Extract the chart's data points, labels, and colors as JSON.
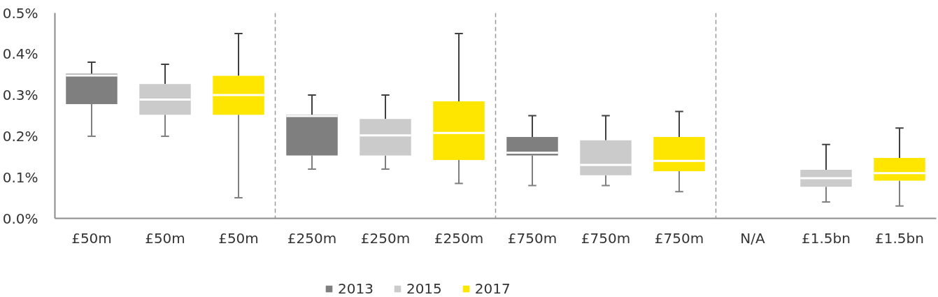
{
  "chart_data": {
    "type": "box",
    "categories": [
      "£50m",
      "£50m",
      "£50m",
      "£250m",
      "£250m",
      "£250m",
      "£750m",
      "£750m",
      "£750m",
      "N/A",
      "£1.5bn",
      "£1.5bn"
    ],
    "series": [
      {
        "name": "2013",
        "color": "#7f7f7f",
        "boxes": [
          {
            "low": 0.2,
            "q1": 0.278,
            "median": 0.348,
            "q3": 0.352,
            "high": 0.38
          },
          null,
          null,
          {
            "low": 0.12,
            "q1": 0.153,
            "median": 0.249,
            "q3": 0.252,
            "high": 0.3
          },
          null,
          null,
          {
            "low": 0.08,
            "q1": 0.153,
            "median": 0.16,
            "q3": 0.198,
            "high": 0.25
          },
          null,
          null,
          null,
          null,
          null
        ]
      },
      {
        "name": "2015",
        "color": "#cbcbcb",
        "boxes": [
          null,
          {
            "low": 0.2,
            "q1": 0.252,
            "median": 0.289,
            "q3": 0.327,
            "high": 0.375
          },
          null,
          null,
          {
            "low": 0.12,
            "q1": 0.153,
            "median": 0.202,
            "q3": 0.242,
            "high": 0.3
          },
          null,
          null,
          {
            "low": 0.08,
            "q1": 0.105,
            "median": 0.13,
            "q3": 0.19,
            "high": 0.25
          },
          null,
          null,
          {
            "low": 0.04,
            "q1": 0.077,
            "median": 0.098,
            "q3": 0.118,
            "high": 0.18
          },
          null
        ]
      },
      {
        "name": "2017",
        "color": "#ffe600",
        "boxes": [
          null,
          null,
          {
            "low": 0.05,
            "q1": 0.252,
            "median": 0.3,
            "q3": 0.347,
            "high": 0.45
          },
          null,
          null,
          {
            "low": 0.085,
            "q1": 0.142,
            "median": 0.208,
            "q3": 0.285,
            "high": 0.45
          },
          null,
          null,
          {
            "low": 0.065,
            "q1": 0.115,
            "median": 0.14,
            "q3": 0.198,
            "high": 0.26
          },
          null,
          null,
          {
            "low": 0.03,
            "q1": 0.092,
            "median": 0.11,
            "q3": 0.147,
            "high": 0.22
          }
        ]
      }
    ],
    "ylim": [
      0,
      0.5
    ],
    "yticks": [
      {
        "value": 0,
        "label": "0.0%"
      },
      {
        "value": 0.1,
        "label": "0.1%"
      },
      {
        "value": 0.2,
        "label": "0.2%"
      },
      {
        "value": 0.3,
        "label": "0.3%"
      },
      {
        "value": 0.4,
        "label": "0.4%"
      },
      {
        "value": 0.5,
        "label": "0.5%"
      }
    ],
    "legend": "bottom",
    "grid": false
  }
}
